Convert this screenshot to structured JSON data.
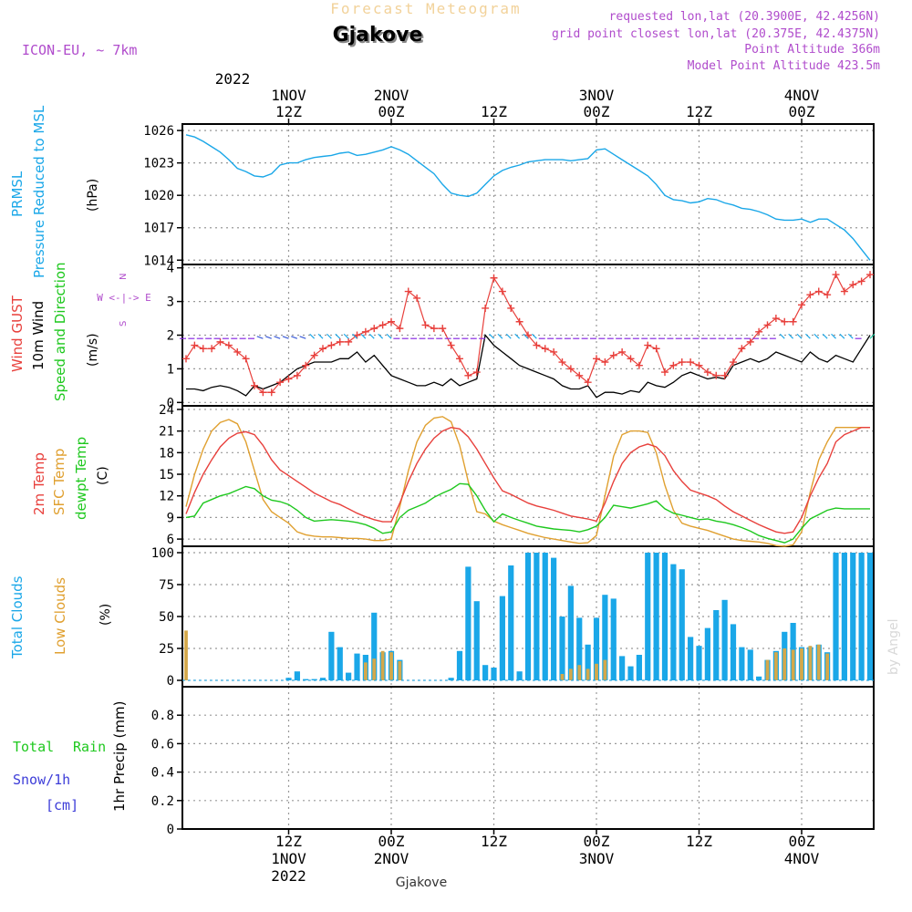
{
  "header": {
    "title_top": "Forecast Meteogram",
    "location": "Gjakove",
    "model": "ICON-EU, ~ 7km",
    "requested": "requested lon,lat (20.3900E, 42.4256N)",
    "gridpoint": "grid point closest lon,lat (20.375E, 42.4375N)",
    "point_alt": "Point Altitude 366m",
    "model_alt": "Model Point Altitude 423.5m",
    "watermark": "by Angel",
    "bottom_label": "Gjakove"
  },
  "colors": {
    "pressure": "#1aa7e8",
    "gust": "#e8403c",
    "wind": "#000000",
    "temp2m": "#e8403c",
    "sfc": "#e0a030",
    "dewpt": "#1ec81e",
    "total_clouds": "#1aa7e8",
    "low_clouds": "#d4a84a",
    "purple": "#b04ccc",
    "snow": "#3c3cd8",
    "rain": "#1ec81e"
  },
  "time_axis": {
    "top_year": "2022",
    "ticks": [
      {
        "h": 12,
        "hour": "12Z",
        "date": "1NOV",
        "year": "2022"
      },
      {
        "h": 24,
        "hour": "00Z",
        "date": "2NOV",
        "year": ""
      },
      {
        "h": 36,
        "hour": "12Z",
        "date": "",
        "year": ""
      },
      {
        "h": 48,
        "hour": "00Z",
        "date": "3NOV",
        "year": ""
      },
      {
        "h": 60,
        "hour": "12Z",
        "date": "",
        "year": ""
      },
      {
        "h": 72,
        "hour": "00Z",
        "date": "4NOV",
        "year": ""
      }
    ]
  },
  "panels": {
    "pressure": {
      "labels": [
        "PRMSL",
        "Pressure Reduced to MSL",
        "(hPa)"
      ]
    },
    "wind": {
      "labels": [
        "Wind GUST",
        "10m Wind",
        "Speed and Direction",
        "(m/s)"
      ],
      "compass": [
        "N",
        "W <-|-> E",
        "S"
      ]
    },
    "temp": {
      "labels": [
        "2m Temp",
        "SFC Temp",
        "dewpt Temp",
        "(C)"
      ]
    },
    "clouds": {
      "labels": [
        "Total Clouds",
        "Low Clouds",
        "(%)"
      ]
    },
    "precip": {
      "labels": [
        "Total",
        "Rain",
        "Snow/1h",
        "[cm]",
        "1hr Precip (mm)"
      ]
    }
  },
  "chart_data": [
    {
      "type": "line",
      "title": "PRMSL Pressure Reduced to MSL",
      "ylabel": "hPa",
      "ylim": [
        1013.6,
        1026.6
      ],
      "yticks": [
        1014,
        1017,
        1020,
        1023,
        1026
      ],
      "x_hours": [
        0,
        1,
        2,
        3,
        4,
        5,
        6,
        7,
        8,
        9,
        10,
        11,
        12,
        13,
        14,
        15,
        16,
        17,
        18,
        19,
        20,
        21,
        22,
        23,
        24,
        25,
        26,
        27,
        28,
        29,
        30,
        31,
        32,
        33,
        34,
        35,
        36,
        37,
        38,
        39,
        40,
        41,
        42,
        43,
        44,
        45,
        46,
        47,
        48,
        49,
        50,
        51,
        52,
        53,
        54,
        55,
        56,
        57,
        58,
        59,
        60,
        61,
        62,
        63,
        64,
        65,
        66,
        67,
        68,
        69,
        70,
        71,
        72,
        73,
        74,
        75,
        76,
        77,
        78,
        79,
        80
      ],
      "series": [
        {
          "name": "PRMSL",
          "values": [
            1025.6,
            1025.4,
            1025.0,
            1024.5,
            1024.0,
            1023.3,
            1022.5,
            1022.2,
            1021.8,
            1021.7,
            1022.0,
            1022.8,
            1023.0,
            1023.0,
            1023.3,
            1023.5,
            1023.6,
            1023.7,
            1023.9,
            1024.0,
            1023.7,
            1023.8,
            1024.0,
            1024.2,
            1024.5,
            1024.2,
            1023.8,
            1023.2,
            1022.6,
            1022.0,
            1021.0,
            1020.2,
            1020.0,
            1019.9,
            1020.2,
            1021.0,
            1021.8,
            1022.3,
            1022.6,
            1022.8,
            1023.1,
            1023.2,
            1023.3,
            1023.3,
            1023.3,
            1023.2,
            1023.3,
            1023.4,
            1024.2,
            1024.3,
            1023.8,
            1023.3,
            1022.8,
            1022.3,
            1021.8,
            1021.0,
            1020.0,
            1019.6,
            1019.5,
            1019.3,
            1019.4,
            1019.7,
            1019.6,
            1019.3,
            1019.1,
            1018.8,
            1018.7,
            1018.5,
            1018.2,
            1017.8,
            1017.7,
            1017.7,
            1017.8,
            1017.5,
            1017.8,
            1017.8,
            1017.3,
            1016.8,
            1016.0,
            1015.0,
            1014.0
          ]
        }
      ]
    },
    {
      "type": "line",
      "title": "Wind GUST / 10m Wind Speed and Direction",
      "ylabel": "m/s",
      "ylim": [
        -0.1,
        4.1
      ],
      "yticks": [
        0,
        1,
        2,
        3,
        4
      ],
      "x_hours": [
        0,
        1,
        2,
        3,
        4,
        5,
        6,
        7,
        8,
        9,
        10,
        11,
        12,
        13,
        14,
        15,
        16,
        17,
        18,
        19,
        20,
        21,
        22,
        23,
        24,
        25,
        26,
        27,
        28,
        29,
        30,
        31,
        32,
        33,
        34,
        35,
        36,
        37,
        38,
        39,
        40,
        41,
        42,
        43,
        44,
        45,
        46,
        47,
        48,
        49,
        50,
        51,
        52,
        53,
        54,
        55,
        56,
        57,
        58,
        59,
        60,
        61,
        62,
        63,
        64,
        65,
        66,
        67,
        68,
        69,
        70,
        71,
        72,
        73,
        74,
        75,
        76,
        77,
        78,
        79,
        80
      ],
      "series": [
        {
          "name": "Wind GUST",
          "values": [
            1.3,
            1.7,
            1.6,
            1.6,
            1.8,
            1.7,
            1.5,
            1.3,
            0.5,
            0.3,
            0.3,
            0.6,
            0.7,
            0.8,
            1.1,
            1.4,
            1.6,
            1.7,
            1.8,
            1.8,
            2.0,
            2.1,
            2.2,
            2.3,
            2.4,
            2.2,
            3.3,
            3.1,
            2.3,
            2.2,
            2.2,
            1.7,
            1.3,
            0.8,
            0.9,
            2.8,
            3.7,
            3.3,
            2.8,
            2.4,
            2.0,
            1.7,
            1.6,
            1.5,
            1.2,
            1.0,
            0.8,
            0.6,
            1.3,
            1.2,
            1.4,
            1.5,
            1.3,
            1.1,
            1.7,
            1.6,
            0.9,
            1.1,
            1.2,
            1.2,
            1.1,
            0.9,
            0.8,
            0.8,
            1.2,
            1.6,
            1.8,
            2.1,
            2.3,
            2.5,
            2.4,
            2.4,
            2.9,
            3.2,
            3.3,
            3.2,
            3.8,
            3.3,
            3.5,
            3.6,
            3.8
          ]
        },
        {
          "name": "10m Wind",
          "values": [
            0.4,
            0.4,
            0.35,
            0.45,
            0.5,
            0.45,
            0.35,
            0.2,
            0.5,
            0.4,
            0.5,
            0.6,
            0.8,
            1.0,
            1.1,
            1.2,
            1.2,
            1.2,
            1.3,
            1.3,
            1.5,
            1.2,
            1.4,
            1.1,
            0.8,
            0.7,
            0.6,
            0.5,
            0.5,
            0.6,
            0.5,
            0.7,
            0.5,
            0.6,
            0.7,
            2.0,
            1.7,
            1.5,
            1.3,
            1.1,
            1.0,
            0.9,
            0.8,
            0.7,
            0.5,
            0.4,
            0.4,
            0.5,
            0.15,
            0.3,
            0.3,
            0.25,
            0.35,
            0.3,
            0.6,
            0.5,
            0.45,
            0.6,
            0.8,
            0.9,
            0.8,
            0.7,
            0.75,
            0.7,
            1.1,
            1.2,
            1.3,
            1.2,
            1.3,
            1.5,
            1.4,
            1.3,
            1.2,
            1.5,
            1.3,
            1.2,
            1.4,
            1.3,
            1.2,
            1.6,
            2.0
          ]
        }
      ]
    },
    {
      "type": "line",
      "title": "2m Temp / SFC Temp / dewpt Temp",
      "ylabel": "C",
      "ylim": [
        5.0,
        24.5
      ],
      "yticks": [
        6,
        9,
        12,
        15,
        18,
        21,
        24
      ],
      "x_hours": [
        0,
        1,
        2,
        3,
        4,
        5,
        6,
        7,
        8,
        9,
        10,
        11,
        12,
        13,
        14,
        15,
        16,
        17,
        18,
        19,
        20,
        21,
        22,
        23,
        24,
        25,
        26,
        27,
        28,
        29,
        30,
        31,
        32,
        33,
        34,
        35,
        36,
        37,
        38,
        39,
        40,
        41,
        42,
        43,
        44,
        45,
        46,
        47,
        48,
        49,
        50,
        51,
        52,
        53,
        54,
        55,
        56,
        57,
        58,
        59,
        60,
        61,
        62,
        63,
        64,
        65,
        66,
        67,
        68,
        69,
        70,
        71,
        72,
        73,
        74,
        75,
        76,
        77,
        78,
        79,
        80
      ],
      "series": [
        {
          "name": "2m Temp",
          "values": [
            9.5,
            12.5,
            15.0,
            17.0,
            18.8,
            20.0,
            20.7,
            20.9,
            20.5,
            19.0,
            17.0,
            15.6,
            14.8,
            14.0,
            13.2,
            12.4,
            11.8,
            11.2,
            10.8,
            10.2,
            9.6,
            9.1,
            8.7,
            8.4,
            8.4,
            11.0,
            14.0,
            16.5,
            18.5,
            20.0,
            21.0,
            21.5,
            21.3,
            20.2,
            18.5,
            16.5,
            14.5,
            12.7,
            12.2,
            11.6,
            11.0,
            10.6,
            10.3,
            10.0,
            9.6,
            9.2,
            9.0,
            8.8,
            8.5,
            11.0,
            14.0,
            16.5,
            18.0,
            18.8,
            19.2,
            18.8,
            17.6,
            15.5,
            14.0,
            12.8,
            12.4,
            12.0,
            11.5,
            10.6,
            9.8,
            9.2,
            8.6,
            8.0,
            7.5,
            7.0,
            6.8,
            7.0,
            9.0,
            12.0,
            14.5,
            16.5,
            19.5,
            20.5,
            21.0,
            21.5,
            21.5
          ]
        },
        {
          "name": "SFC Temp",
          "values": [
            10.5,
            15.0,
            18.5,
            21.0,
            22.2,
            22.6,
            22.0,
            19.5,
            15.5,
            11.5,
            9.8,
            9.0,
            8.2,
            7.0,
            6.6,
            6.4,
            6.3,
            6.3,
            6.2,
            6.1,
            6.1,
            6.0,
            5.8,
            5.8,
            6.0,
            10.5,
            15.5,
            19.5,
            21.8,
            22.8,
            23.0,
            22.3,
            19.0,
            14.0,
            9.8,
            9.5,
            8.5,
            8.0,
            7.6,
            7.2,
            6.8,
            6.5,
            6.2,
            6.0,
            5.8,
            5.6,
            5.4,
            5.5,
            6.5,
            12.0,
            17.5,
            20.5,
            21.0,
            21.0,
            20.8,
            18.0,
            13.5,
            10.0,
            8.2,
            7.8,
            7.5,
            7.2,
            6.8,
            6.4,
            6.0,
            5.8,
            5.7,
            5.6,
            5.4,
            5.1,
            5.0,
            5.2,
            7.0,
            12.5,
            17.0,
            19.5,
            21.5,
            21.5,
            21.5,
            21.5,
            21.5
          ]
        },
        {
          "name": "dewpt Temp",
          "values": [
            9.0,
            9.2,
            11.0,
            11.5,
            12.0,
            12.3,
            12.8,
            13.3,
            13.0,
            12.0,
            11.4,
            11.2,
            10.8,
            10.0,
            9.0,
            8.5,
            8.6,
            8.7,
            8.6,
            8.5,
            8.3,
            8.0,
            7.5,
            6.8,
            7.0,
            9.0,
            10.0,
            10.5,
            11.0,
            11.8,
            12.4,
            12.9,
            13.7,
            13.6,
            12.0,
            10.0,
            8.4,
            9.5,
            9.0,
            8.6,
            8.2,
            7.8,
            7.6,
            7.4,
            7.3,
            7.2,
            7.0,
            7.3,
            7.8,
            9.0,
            10.7,
            10.5,
            10.3,
            10.6,
            10.9,
            11.3,
            10.2,
            9.6,
            9.3,
            9.0,
            8.7,
            8.8,
            8.5,
            8.3,
            8.0,
            7.6,
            7.1,
            6.5,
            6.1,
            5.8,
            5.5,
            6.0,
            7.5,
            8.8,
            9.4,
            10.0,
            10.3,
            10.2,
            10.2,
            10.2,
            10.2
          ]
        }
      ]
    },
    {
      "type": "bar",
      "title": "Total Clouds / Low Clouds",
      "ylabel": "%",
      "ylim": [
        -5,
        105
      ],
      "yticks": [
        0,
        25,
        50,
        75,
        100
      ],
      "x_hours": [
        0,
        1,
        2,
        3,
        4,
        5,
        6,
        7,
        8,
        9,
        10,
        11,
        12,
        13,
        14,
        15,
        16,
        17,
        18,
        19,
        20,
        21,
        22,
        23,
        24,
        25,
        26,
        27,
        28,
        29,
        30,
        31,
        32,
        33,
        34,
        35,
        36,
        37,
        38,
        39,
        40,
        41,
        42,
        43,
        44,
        45,
        46,
        47,
        48,
        49,
        50,
        51,
        52,
        53,
        54,
        55,
        56,
        57,
        58,
        59,
        60,
        61,
        62,
        63,
        64,
        65,
        66,
        67,
        68,
        69,
        70,
        71,
        72,
        73,
        74,
        75,
        76,
        77,
        78,
        79,
        80
      ],
      "series": [
        {
          "name": "Total Clouds",
          "values": [
            0,
            0,
            0,
            0,
            0,
            0,
            0,
            0,
            0,
            0,
            0,
            0,
            2,
            7,
            1,
            1,
            2,
            38,
            26,
            6,
            21,
            20,
            53,
            22,
            23,
            16,
            0,
            0,
            0,
            0,
            0,
            2,
            23,
            89,
            62,
            12,
            10,
            66,
            90,
            7,
            100,
            100,
            100,
            96,
            50,
            74,
            49,
            28,
            49,
            67,
            64,
            19,
            11,
            20,
            100,
            100,
            100,
            91,
            87,
            34,
            27,
            41,
            55,
            63,
            44,
            26,
            24,
            3,
            16,
            23,
            38,
            45,
            26,
            26,
            28,
            22,
            100,
            100,
            100,
            100,
            100
          ]
        },
        {
          "name": "Low Clouds",
          "values": [
            39,
            0,
            0,
            0,
            0,
            0,
            0,
            0,
            0,
            0,
            0,
            0,
            0,
            0,
            0,
            0,
            0,
            0,
            0,
            0,
            0,
            14,
            17,
            23,
            22,
            15,
            0,
            0,
            0,
            0,
            0,
            0,
            0,
            0,
            0,
            0,
            0,
            0,
            0,
            0,
            0,
            0,
            0,
            0,
            5,
            9,
            12,
            9,
            13,
            16,
            0,
            0,
            0,
            0,
            0,
            0,
            0,
            0,
            0,
            0,
            0,
            0,
            0,
            0,
            0,
            0,
            0,
            0,
            16,
            22,
            25,
            24,
            25,
            27,
            28,
            21,
            0,
            0,
            0,
            0,
            0
          ]
        }
      ]
    },
    {
      "type": "bar",
      "title": "1hr Precip",
      "ylabel": "1hr Precip (mm)",
      "ylim": [
        0,
        1.0
      ],
      "yticks": [
        0,
        0.2,
        0.4,
        0.6,
        0.8
      ],
      "series": [
        {
          "name": "Total Rain",
          "values": []
        },
        {
          "name": "Snow/1h",
          "values": []
        }
      ]
    }
  ]
}
